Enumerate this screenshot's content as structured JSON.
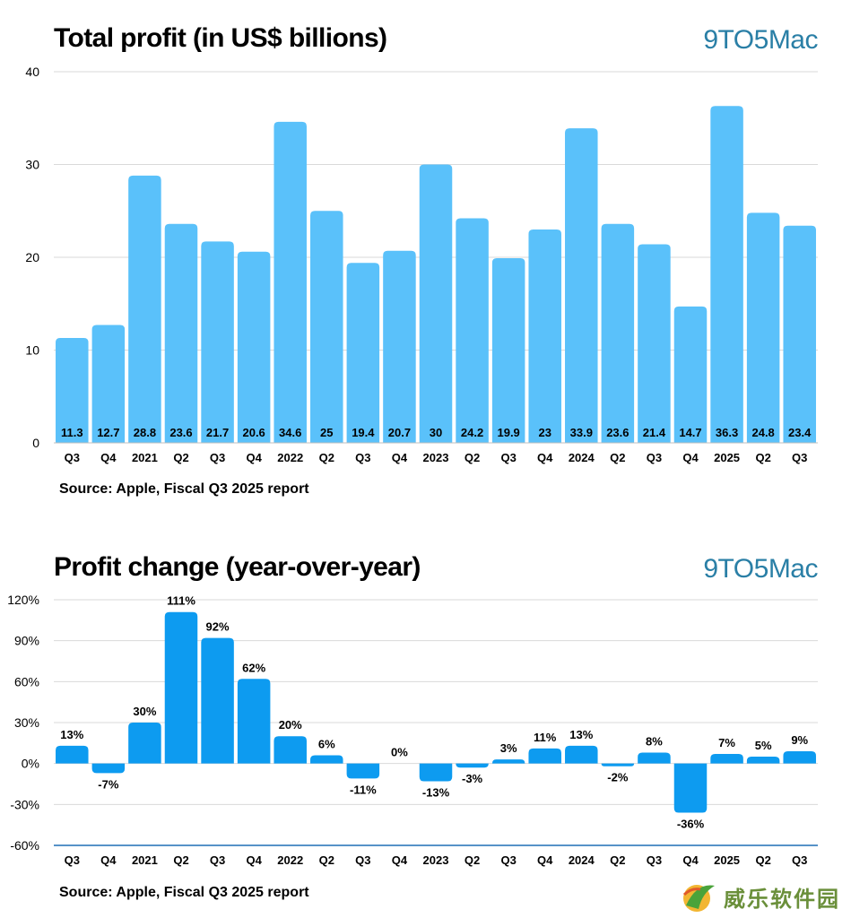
{
  "chart1": {
    "title": "Total profit (in US$ billions)",
    "brand": "9TO5Mac",
    "source": "Source: Apple, Fiscal Q3 2025 report"
  },
  "chart2": {
    "title": "Profit change (year-over-year)",
    "brand": "9TO5Mac",
    "source": "Source: Apple, Fiscal Q3 2025 report"
  },
  "watermark": {
    "text": "威乐软件园"
  },
  "colors": {
    "bar1": "#5ac1fa",
    "bar2": "#0d9bf0",
    "grid": "#d9d9d9",
    "brand": "#2a7fa6"
  },
  "chart_data": [
    {
      "type": "bar",
      "title": "Total profit (in US$ billions)",
      "categories": [
        "Q3",
        "Q4",
        "2021",
        "Q2",
        "Q3",
        "Q4",
        "2022",
        "Q2",
        "Q3",
        "Q4",
        "2023",
        "Q2",
        "Q3",
        "Q4",
        "2024",
        "Q2",
        "Q3",
        "Q4",
        "2025",
        "Q2",
        "Q3"
      ],
      "values": [
        11.3,
        12.7,
        28.8,
        23.6,
        21.7,
        20.6,
        34.6,
        25,
        19.4,
        20.7,
        30,
        24.2,
        19.9,
        23,
        33.9,
        23.6,
        21.4,
        14.7,
        36.3,
        24.8,
        23.4
      ],
      "labels": [
        "11.3",
        "12.7",
        "28.8",
        "23.6",
        "21.7",
        "20.6",
        "34.6",
        "25",
        "19.4",
        "20.7",
        "30",
        "24.2",
        "19.9",
        "23",
        "33.9",
        "23.6",
        "21.4",
        "14.7",
        "36.3",
        "24.8",
        "23.4"
      ],
      "ylim": [
        0,
        40
      ],
      "yticks": [
        "0",
        "10",
        "20",
        "30",
        "40"
      ],
      "grid": true
    },
    {
      "type": "bar",
      "title": "Profit change (year-over-year)",
      "categories": [
        "Q3",
        "Q4",
        "2021",
        "Q2",
        "Q3",
        "Q4",
        "2022",
        "Q2",
        "Q3",
        "Q4",
        "2023",
        "Q2",
        "Q3",
        "Q4",
        "2024",
        "Q2",
        "Q3",
        "Q4",
        "2025",
        "Q2",
        "Q3"
      ],
      "values": [
        13,
        -7,
        30,
        111,
        92,
        62,
        20,
        6,
        -11,
        0,
        -13,
        -3,
        3,
        11,
        13,
        -2,
        8,
        -36,
        7,
        5,
        9
      ],
      "labels": [
        "13%",
        "-7%",
        "30%",
        "111%",
        "92%",
        "62%",
        "20%",
        "6%",
        "-11%",
        "0%",
        "-13%",
        "-3%",
        "3%",
        "11%",
        "13%",
        "-2%",
        "8%",
        "-36%",
        "7%",
        "5%",
        "9%"
      ],
      "ylim": [
        -60,
        120
      ],
      "yticks": [
        "-60%",
        "-30%",
        "0%",
        "30%",
        "60%",
        "90%",
        "120%"
      ],
      "grid": true
    }
  ]
}
